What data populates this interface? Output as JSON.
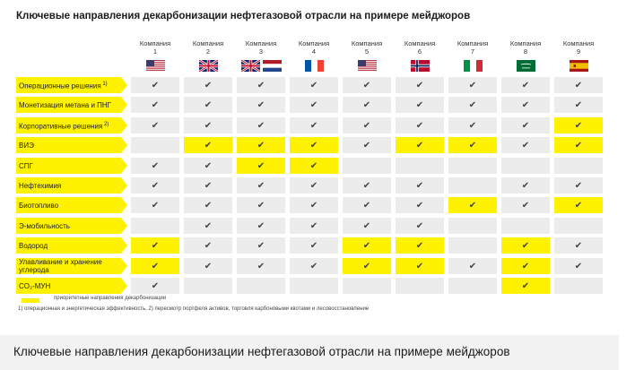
{
  "chart_data": {
    "type": "table",
    "title": "Ключевые направления декарбонизации нефтегазовой отрасли на примере мейджоров",
    "check_symbol": "✔",
    "column_word": "Компания",
    "columns": [
      {
        "label": "Компания",
        "number": "1",
        "flags": [
          "flag-us"
        ]
      },
      {
        "label": "Компания",
        "number": "2",
        "flags": [
          "flag-uk"
        ]
      },
      {
        "label": "Компания",
        "number": "3",
        "flags": [
          "flag-uk",
          "flag-nl"
        ]
      },
      {
        "label": "Компания",
        "number": "4",
        "flags": [
          "flag-fr"
        ]
      },
      {
        "label": "Компания",
        "number": "5",
        "flags": [
          "flag-us"
        ]
      },
      {
        "label": "Компания",
        "number": "6",
        "flags": [
          "flag-no"
        ]
      },
      {
        "label": "Компания",
        "number": "7",
        "flags": [
          "flag-it"
        ]
      },
      {
        "label": "Компания",
        "number": "8",
        "flags": [
          "flag-sa"
        ]
      },
      {
        "label": "Компания",
        "number": "9",
        "flags": [
          "flag-es"
        ]
      }
    ],
    "rows": [
      {
        "label": "Операционные решения",
        "note": "1)",
        "checks": [
          1,
          1,
          1,
          1,
          1,
          1,
          1,
          1,
          1
        ],
        "priority": [
          0,
          0,
          0,
          0,
          0,
          0,
          0,
          0,
          0
        ]
      },
      {
        "label": "Монетизация метана и ПНГ",
        "note": "",
        "checks": [
          1,
          1,
          1,
          1,
          1,
          1,
          1,
          1,
          1
        ],
        "priority": [
          0,
          0,
          0,
          0,
          0,
          0,
          0,
          0,
          0
        ]
      },
      {
        "label": "Корпоративные решения",
        "note": "2)",
        "checks": [
          1,
          1,
          1,
          1,
          1,
          1,
          1,
          1,
          1
        ],
        "priority": [
          0,
          0,
          0,
          0,
          0,
          0,
          0,
          0,
          1
        ]
      },
      {
        "label": "ВИЭ",
        "note": "",
        "checks": [
          0,
          1,
          1,
          1,
          1,
          1,
          1,
          1,
          1
        ],
        "priority": [
          0,
          1,
          1,
          1,
          0,
          1,
          1,
          0,
          1
        ]
      },
      {
        "label": "СПГ",
        "note": "",
        "checks": [
          1,
          1,
          1,
          1,
          0,
          0,
          0,
          0,
          0
        ],
        "priority": [
          0,
          0,
          1,
          1,
          0,
          0,
          0,
          0,
          0
        ]
      },
      {
        "label": "Нефтехимия",
        "note": "",
        "checks": [
          1,
          1,
          1,
          1,
          1,
          1,
          0,
          1,
          1
        ],
        "priority": [
          0,
          0,
          0,
          0,
          0,
          0,
          0,
          0,
          0
        ]
      },
      {
        "label": "Биотопливо",
        "note": "",
        "checks": [
          1,
          1,
          1,
          1,
          1,
          1,
          1,
          1,
          1
        ],
        "priority": [
          0,
          0,
          0,
          0,
          0,
          0,
          1,
          0,
          1
        ]
      },
      {
        "label": "Э-мобильность",
        "note": "",
        "checks": [
          0,
          1,
          1,
          1,
          1,
          1,
          0,
          0,
          0
        ],
        "priority": [
          0,
          0,
          0,
          0,
          0,
          0,
          0,
          0,
          0
        ]
      },
      {
        "label": "Водород",
        "note": "",
        "checks": [
          1,
          1,
          1,
          1,
          1,
          1,
          0,
          1,
          1
        ],
        "priority": [
          1,
          0,
          0,
          0,
          1,
          1,
          0,
          1,
          0
        ]
      },
      {
        "label": "Улавливание и хранение углерода",
        "note": "",
        "checks": [
          1,
          1,
          1,
          1,
          1,
          1,
          1,
          1,
          1
        ],
        "priority": [
          1,
          0,
          0,
          0,
          1,
          1,
          0,
          1,
          0
        ]
      },
      {
        "label": "CO₂-МУН",
        "note": "",
        "checks": [
          1,
          0,
          0,
          0,
          0,
          0,
          0,
          1,
          0
        ],
        "priority": [
          0,
          0,
          0,
          0,
          0,
          0,
          0,
          1,
          0
        ]
      }
    ],
    "legend": [
      {
        "label": "приоритетные направления декарбонизации",
        "color": "#fff200"
      }
    ],
    "footnote": "1) операционная и энергетическая эффективность, 2) пересмотр портфеля активов, торговля карбоновыми квотами и лесовосстановление"
  },
  "caption": "Ключевые направления декарбонизации нефтегазовой отрасли на примере мейджоров",
  "colors": {
    "accent": "#fff200",
    "cell": "#ececec",
    "caption_bg": "#f2f2f2"
  }
}
